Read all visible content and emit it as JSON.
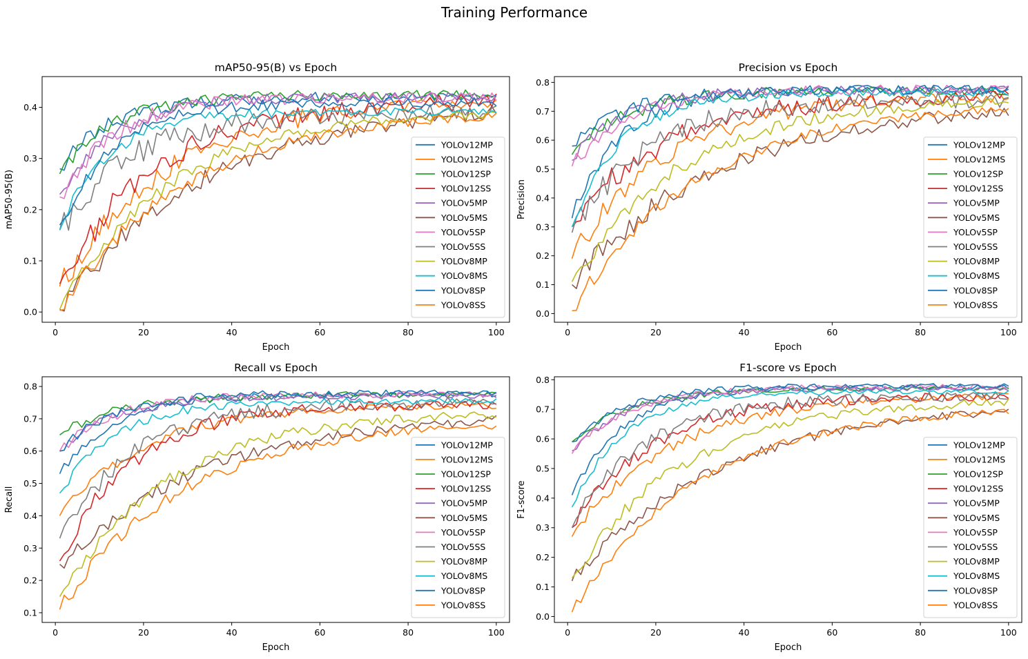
{
  "figure": {
    "title": "Training Performance"
  },
  "chart_data": [
    {
      "type": "line",
      "title": "mAP50-95(B) vs Epoch",
      "xlabel": "Epoch",
      "ylabel": "mAP50-95(B)",
      "xlim": [
        -3,
        103
      ],
      "ylim": [
        -0.02,
        0.46
      ],
      "xticks": [
        0,
        20,
        40,
        60,
        80,
        100
      ],
      "yticks": [
        0.0,
        0.1,
        0.2,
        0.3,
        0.4
      ],
      "ytick_labels": [
        "0.0",
        "0.1",
        "0.2",
        "0.3",
        "0.4"
      ],
      "grid": false,
      "legend": "lower-right",
      "series": [
        {
          "name": "YOLOv12MP",
          "color": "#1f77b4",
          "start": 0.28,
          "plateau": 0.42,
          "rate": 0.085,
          "amp": 0.012,
          "seed": 1
        },
        {
          "name": "YOLOv12MS",
          "color": "#ff7f0e",
          "start": 0.05,
          "plateau": 0.42,
          "rate": 0.04,
          "amp": 0.02,
          "seed": 2
        },
        {
          "name": "YOLOv12SP",
          "color": "#2ca02c",
          "start": 0.27,
          "plateau": 0.425,
          "rate": 0.08,
          "amp": 0.012,
          "seed": 3
        },
        {
          "name": "YOLOv12SS",
          "color": "#d62728",
          "start": 0.055,
          "plateau": 0.415,
          "rate": 0.045,
          "amp": 0.022,
          "seed": 4
        },
        {
          "name": "YOLOv5MP",
          "color": "#9467bd",
          "start": 0.23,
          "plateau": 0.42,
          "rate": 0.08,
          "amp": 0.012,
          "seed": 5
        },
        {
          "name": "YOLOv5MS",
          "color": "#8c564b",
          "start": 0.005,
          "plateau": 0.41,
          "rate": 0.03,
          "amp": 0.018,
          "seed": 6
        },
        {
          "name": "YOLOv5SP",
          "color": "#e377c2",
          "start": 0.225,
          "plateau": 0.42,
          "rate": 0.08,
          "amp": 0.014,
          "seed": 7
        },
        {
          "name": "YOLOv5SS",
          "color": "#7f7f7f",
          "start": 0.16,
          "plateau": 0.39,
          "rate": 0.06,
          "amp": 0.022,
          "seed": 8
        },
        {
          "name": "YOLOv8MP",
          "color": "#bcbd22",
          "start": 0.005,
          "plateau": 0.395,
          "rate": 0.04,
          "amp": 0.012,
          "seed": 9
        },
        {
          "name": "YOLOv8MS",
          "color": "#17becf",
          "start": 0.16,
          "plateau": 0.392,
          "rate": 0.09,
          "amp": 0.01,
          "seed": 10
        },
        {
          "name": "YOLOv8SP",
          "color": "#1f77b4",
          "start": 0.17,
          "plateau": 0.41,
          "rate": 0.08,
          "amp": 0.012,
          "seed": 11
        },
        {
          "name": "YOLOv8SS",
          "color": "#ff7f0e",
          "start": 0.003,
          "plateau": 0.395,
          "rate": 0.035,
          "amp": 0.012,
          "seed": 12
        }
      ]
    },
    {
      "type": "line",
      "title": "Precision vs Epoch",
      "xlabel": "Epoch",
      "ylabel": "Precision",
      "xlim": [
        -3,
        103
      ],
      "ylim": [
        -0.03,
        0.82
      ],
      "xticks": [
        0,
        20,
        40,
        60,
        80,
        100
      ],
      "yticks": [
        0.0,
        0.1,
        0.2,
        0.3,
        0.4,
        0.5,
        0.6,
        0.7,
        0.8
      ],
      "ytick_labels": [
        "0.0",
        "0.1",
        "0.2",
        "0.3",
        "0.4",
        "0.5",
        "0.6",
        "0.7",
        "0.8"
      ],
      "grid": false,
      "legend": "lower-right",
      "series": [
        {
          "name": "YOLOv12MP",
          "color": "#1f77b4",
          "start": 0.33,
          "plateau": 0.775,
          "rate": 0.09,
          "amp": 0.02,
          "seed": 13
        },
        {
          "name": "YOLOv12MS",
          "color": "#ff7f0e",
          "start": 0.19,
          "plateau": 0.76,
          "rate": 0.045,
          "amp": 0.03,
          "seed": 14
        },
        {
          "name": "YOLOv12SP",
          "color": "#2ca02c",
          "start": 0.55,
          "plateau": 0.77,
          "rate": 0.08,
          "amp": 0.02,
          "seed": 15
        },
        {
          "name": "YOLOv12SS",
          "color": "#d62728",
          "start": 0.3,
          "plateau": 0.75,
          "rate": 0.05,
          "amp": 0.035,
          "seed": 16
        },
        {
          "name": "YOLOv5MP",
          "color": "#9467bd",
          "start": 0.53,
          "plateau": 0.775,
          "rate": 0.08,
          "amp": 0.02,
          "seed": 17
        },
        {
          "name": "YOLOv5MS",
          "color": "#8c564b",
          "start": 0.1,
          "plateau": 0.73,
          "rate": 0.03,
          "amp": 0.03,
          "seed": 18
        },
        {
          "name": "YOLOv5SP",
          "color": "#e377c2",
          "start": 0.51,
          "plateau": 0.775,
          "rate": 0.08,
          "amp": 0.02,
          "seed": 19
        },
        {
          "name": "YOLOv5SS",
          "color": "#7f7f7f",
          "start": 0.28,
          "plateau": 0.74,
          "rate": 0.06,
          "amp": 0.035,
          "seed": 20
        },
        {
          "name": "YOLOv8MP",
          "color": "#bcbd22",
          "start": 0.11,
          "plateau": 0.745,
          "rate": 0.04,
          "amp": 0.025,
          "seed": 21
        },
        {
          "name": "YOLOv8MS",
          "color": "#17becf",
          "start": 0.3,
          "plateau": 0.765,
          "rate": 0.09,
          "amp": 0.018,
          "seed": 22
        },
        {
          "name": "YOLOv8SP",
          "color": "#1f77b4",
          "start": 0.58,
          "plateau": 0.775,
          "rate": 0.08,
          "amp": 0.02,
          "seed": 23
        },
        {
          "name": "YOLOv8SS",
          "color": "#ff7f0e",
          "start": 0.01,
          "plateau": 0.73,
          "rate": 0.035,
          "amp": 0.02,
          "seed": 24
        }
      ]
    },
    {
      "type": "line",
      "title": "Recall vs Epoch",
      "xlabel": "Epoch",
      "ylabel": "Recall",
      "xlim": [
        -3,
        103
      ],
      "ylim": [
        0.07,
        0.83
      ],
      "xticks": [
        0,
        20,
        40,
        60,
        80,
        100
      ],
      "yticks": [
        0.1,
        0.2,
        0.3,
        0.4,
        0.5,
        0.6,
        0.7,
        0.8
      ],
      "ytick_labels": [
        "0.1",
        "0.2",
        "0.3",
        "0.4",
        "0.5",
        "0.6",
        "0.7",
        "0.8"
      ],
      "grid": false,
      "legend": "lower-right",
      "series": [
        {
          "name": "YOLOv12MP",
          "color": "#1f77b4",
          "start": 0.53,
          "plateau": 0.775,
          "rate": 0.08,
          "amp": 0.012,
          "seed": 25
        },
        {
          "name": "YOLOv12MS",
          "color": "#ff7f0e",
          "start": 0.4,
          "plateau": 0.745,
          "rate": 0.05,
          "amp": 0.015,
          "seed": 26
        },
        {
          "name": "YOLOv12SP",
          "color": "#2ca02c",
          "start": 0.65,
          "plateau": 0.775,
          "rate": 0.07,
          "amp": 0.012,
          "seed": 27
        },
        {
          "name": "YOLOv12SS",
          "color": "#d62728",
          "start": 0.26,
          "plateau": 0.745,
          "rate": 0.06,
          "amp": 0.02,
          "seed": 28
        },
        {
          "name": "YOLOv5MP",
          "color": "#9467bd",
          "start": 0.6,
          "plateau": 0.77,
          "rate": 0.08,
          "amp": 0.012,
          "seed": 29
        },
        {
          "name": "YOLOv5MS",
          "color": "#8c564b",
          "start": 0.25,
          "plateau": 0.72,
          "rate": 0.03,
          "amp": 0.02,
          "seed": 30
        },
        {
          "name": "YOLOv5SP",
          "color": "#e377c2",
          "start": 0.6,
          "plateau": 0.775,
          "rate": 0.08,
          "amp": 0.012,
          "seed": 31
        },
        {
          "name": "YOLOv5SS",
          "color": "#7f7f7f",
          "start": 0.33,
          "plateau": 0.75,
          "rate": 0.06,
          "amp": 0.025,
          "seed": 32
        },
        {
          "name": "YOLOv8MP",
          "color": "#bcbd22",
          "start": 0.15,
          "plateau": 0.725,
          "rate": 0.04,
          "amp": 0.018,
          "seed": 33
        },
        {
          "name": "YOLOv8MS",
          "color": "#17becf",
          "start": 0.47,
          "plateau": 0.755,
          "rate": 0.08,
          "amp": 0.012,
          "seed": 34
        },
        {
          "name": "YOLOv8SP",
          "color": "#1f77b4",
          "start": 0.6,
          "plateau": 0.78,
          "rate": 0.08,
          "amp": 0.012,
          "seed": 35
        },
        {
          "name": "YOLOv8SS",
          "color": "#ff7f0e",
          "start": 0.11,
          "plateau": 0.7,
          "rate": 0.035,
          "amp": 0.018,
          "seed": 36
        }
      ]
    },
    {
      "type": "line",
      "title": "F1-score vs Epoch",
      "xlabel": "Epoch",
      "ylabel": "F1-score",
      "xlim": [
        -3,
        103
      ],
      "ylim": [
        -0.02,
        0.81
      ],
      "xticks": [
        0,
        20,
        40,
        60,
        80,
        100
      ],
      "yticks": [
        0.0,
        0.1,
        0.2,
        0.3,
        0.4,
        0.5,
        0.6,
        0.7,
        0.8
      ],
      "ytick_labels": [
        "0.0",
        "0.1",
        "0.2",
        "0.3",
        "0.4",
        "0.5",
        "0.6",
        "0.7",
        "0.8"
      ],
      "grid": false,
      "legend": "lower-right",
      "series": [
        {
          "name": "YOLOv12MP",
          "color": "#1f77b4",
          "start": 0.41,
          "plateau": 0.775,
          "rate": 0.085,
          "amp": 0.01,
          "seed": 37
        },
        {
          "name": "YOLOv12MS",
          "color": "#ff7f0e",
          "start": 0.27,
          "plateau": 0.75,
          "rate": 0.045,
          "amp": 0.018,
          "seed": 38
        },
        {
          "name": "YOLOv12SP",
          "color": "#2ca02c",
          "start": 0.59,
          "plateau": 0.77,
          "rate": 0.075,
          "amp": 0.01,
          "seed": 39
        },
        {
          "name": "YOLOv12SS",
          "color": "#d62728",
          "start": 0.3,
          "plateau": 0.745,
          "rate": 0.055,
          "amp": 0.02,
          "seed": 40
        },
        {
          "name": "YOLOv5MP",
          "color": "#9467bd",
          "start": 0.56,
          "plateau": 0.77,
          "rate": 0.08,
          "amp": 0.01,
          "seed": 41
        },
        {
          "name": "YOLOv5MS",
          "color": "#8c564b",
          "start": 0.12,
          "plateau": 0.725,
          "rate": 0.03,
          "amp": 0.018,
          "seed": 42
        },
        {
          "name": "YOLOv5SP",
          "color": "#e377c2",
          "start": 0.55,
          "plateau": 0.775,
          "rate": 0.08,
          "amp": 0.012,
          "seed": 43
        },
        {
          "name": "YOLOv5SS",
          "color": "#7f7f7f",
          "start": 0.3,
          "plateau": 0.745,
          "rate": 0.06,
          "amp": 0.022,
          "seed": 44
        },
        {
          "name": "YOLOv8MP",
          "color": "#bcbd22",
          "start": 0.13,
          "plateau": 0.735,
          "rate": 0.04,
          "amp": 0.018,
          "seed": 45
        },
        {
          "name": "YOLOv8MS",
          "color": "#17becf",
          "start": 0.37,
          "plateau": 0.76,
          "rate": 0.085,
          "amp": 0.01,
          "seed": 46
        },
        {
          "name": "YOLOv8SP",
          "color": "#1f77b4",
          "start": 0.59,
          "plateau": 0.78,
          "rate": 0.08,
          "amp": 0.01,
          "seed": 47
        },
        {
          "name": "YOLOv8SS",
          "color": "#ff7f0e",
          "start": 0.015,
          "plateau": 0.715,
          "rate": 0.035,
          "amp": 0.015,
          "seed": 48
        }
      ]
    }
  ]
}
